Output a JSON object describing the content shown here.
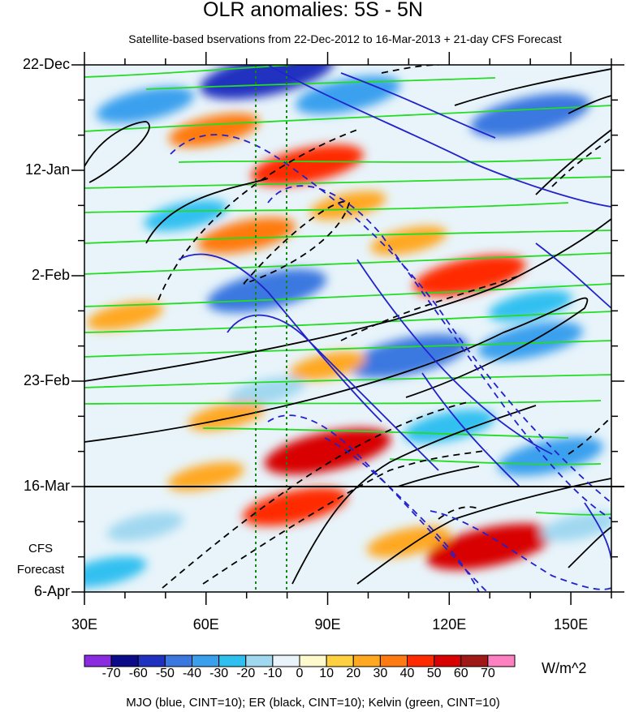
{
  "chart_data": {
    "type": "heatmap",
    "title": "OLR anomalies: 5S - 5N",
    "subtitle": "Satellite-based bservations from 22-Dec-2012 to 16-Mar-2013 + 21-day CFS Forecast",
    "x_ticks": [
      "30E",
      "60E",
      "90E",
      "120E",
      "150E"
    ],
    "x_tick_values": [
      30,
      60,
      90,
      120,
      150
    ],
    "xlim": [
      30,
      160
    ],
    "y_ticks": [
      "22-Dec",
      "12-Jan",
      "2-Feb",
      "23-Feb",
      "16-Mar",
      "6-Apr"
    ],
    "y_tick_days": [
      0,
      21,
      42,
      63,
      84,
      105
    ],
    "ylim_days": [
      0,
      105
    ],
    "forecast_start_day": 84,
    "forecast_label": "CFS Forecast",
    "colorbar_levels": [
      -70,
      -60,
      -50,
      -40,
      -30,
      -20,
      -10,
      0,
      10,
      20,
      30,
      40,
      50,
      60,
      70
    ],
    "colorbar_labels": [
      "-70",
      "-60",
      "-50",
      "-40",
      "-30",
      "-20",
      "-10",
      "0",
      "10",
      "20",
      "30",
      "40",
      "50",
      "60",
      "70"
    ],
    "colorbar_colors": [
      "#8a2be2",
      "#0b0b8a",
      "#2030c0",
      "#3a78e0",
      "#3aa0ee",
      "#30c0f0",
      "#a0d8f0",
      "#e8f4fa",
      "#fffacd",
      "#ffd040",
      "#ffa820",
      "#ff7a10",
      "#ff2a00",
      "#d80000",
      "#a01818",
      "#ff80c0"
    ],
    "units": "W/m^2",
    "reference_lines_lon": [
      72,
      80
    ],
    "anomaly_features": [
      {
        "lon": 75,
        "day": 2,
        "value": -60
      },
      {
        "lon": 45,
        "day": 8,
        "value": -35
      },
      {
        "lon": 95,
        "day": 6,
        "value": -40
      },
      {
        "lon": 140,
        "day": 10,
        "value": -50
      },
      {
        "lon": 62,
        "day": 13,
        "value": 30
      },
      {
        "lon": 85,
        "day": 20,
        "value": 45
      },
      {
        "lon": 95,
        "day": 28,
        "value": 20
      },
      {
        "lon": 70,
        "day": 34,
        "value": 35
      },
      {
        "lon": 110,
        "day": 35,
        "value": 20
      },
      {
        "lon": 55,
        "day": 30,
        "value": -25
      },
      {
        "lon": 75,
        "day": 45,
        "value": -50
      },
      {
        "lon": 125,
        "day": 42,
        "value": 45
      },
      {
        "lon": 40,
        "day": 50,
        "value": 20
      },
      {
        "lon": 140,
        "day": 48,
        "value": -25
      },
      {
        "lon": 110,
        "day": 58,
        "value": -50
      },
      {
        "lon": 140,
        "day": 55,
        "value": -40
      },
      {
        "lon": 90,
        "day": 60,
        "value": 20
      },
      {
        "lon": 75,
        "day": 65,
        "value": -20
      },
      {
        "lon": 65,
        "day": 70,
        "value": 20
      },
      {
        "lon": 90,
        "day": 77,
        "value": 55
      },
      {
        "lon": 120,
        "day": 72,
        "value": -30
      },
      {
        "lon": 145,
        "day": 78,
        "value": -40
      },
      {
        "lon": 60,
        "day": 82,
        "value": 20
      },
      {
        "lon": 82,
        "day": 88,
        "value": 40
      },
      {
        "lon": 45,
        "day": 92,
        "value": -20
      },
      {
        "lon": 130,
        "day": 96,
        "value": 55
      },
      {
        "lon": 110,
        "day": 95,
        "value": 25
      },
      {
        "lon": 35,
        "day": 101,
        "value": -25
      },
      {
        "lon": 152,
        "day": 92,
        "value": -20
      }
    ],
    "contour_sets": [
      {
        "name": "MJO",
        "color": "blue",
        "interval": 10
      },
      {
        "name": "ER",
        "color": "black",
        "interval": 10
      },
      {
        "name": "Kelvin",
        "color": "green",
        "interval": 10
      }
    ]
  },
  "footer": "MJO (blue, CINT=10); ER (black, CINT=10); Kelvin (green, CINT=10)"
}
